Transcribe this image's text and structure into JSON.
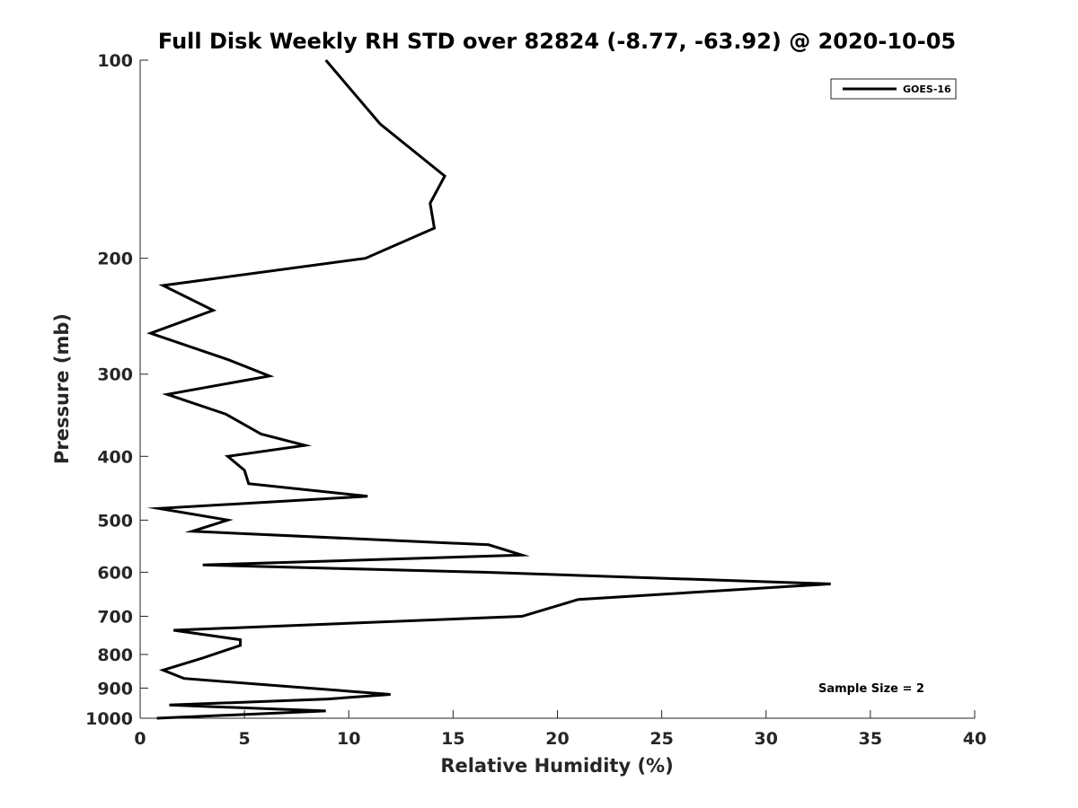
{
  "chart_data": {
    "type": "line",
    "title": "Full Disk Weekly RH STD over 82824 (-8.77, -63.92) @ 2020-10-05",
    "xlabel": "Relative Humidity (%)",
    "ylabel": "Pressure (mb)",
    "xlim": [
      0,
      40
    ],
    "ylim": [
      100,
      1000
    ],
    "y_scale": "log",
    "y_reversed": true,
    "x_ticks": [
      0,
      5,
      10,
      15,
      20,
      25,
      30,
      35,
      40
    ],
    "y_ticks": [
      100,
      200,
      300,
      400,
      500,
      600,
      700,
      800,
      900,
      1000
    ],
    "grid": false,
    "legend_position": "top-right",
    "series": [
      {
        "name": "GOES-16",
        "color": "#000000",
        "points": [
          {
            "x": 8.9,
            "y": 100
          },
          {
            "x": 11.5,
            "y": 125
          },
          {
            "x": 14.6,
            "y": 150
          },
          {
            "x": 13.9,
            "y": 165
          },
          {
            "x": 14.1,
            "y": 180
          },
          {
            "x": 10.8,
            "y": 200
          },
          {
            "x": 1.1,
            "y": 220
          },
          {
            "x": 3.5,
            "y": 240
          },
          {
            "x": 0.5,
            "y": 260
          },
          {
            "x": 4.2,
            "y": 285
          },
          {
            "x": 6.2,
            "y": 302
          },
          {
            "x": 1.3,
            "y": 322
          },
          {
            "x": 4.1,
            "y": 345
          },
          {
            "x": 5.8,
            "y": 370
          },
          {
            "x": 7.9,
            "y": 385
          },
          {
            "x": 4.2,
            "y": 400
          },
          {
            "x": 5.0,
            "y": 420
          },
          {
            "x": 5.2,
            "y": 440
          },
          {
            "x": 10.9,
            "y": 460
          },
          {
            "x": 0.9,
            "y": 480
          },
          {
            "x": 4.2,
            "y": 500
          },
          {
            "x": 2.5,
            "y": 520
          },
          {
            "x": 16.7,
            "y": 545
          },
          {
            "x": 18.3,
            "y": 565
          },
          {
            "x": 3.0,
            "y": 585
          },
          {
            "x": 16.5,
            "y": 600
          },
          {
            "x": 33.1,
            "y": 625
          },
          {
            "x": 21.0,
            "y": 660
          },
          {
            "x": 18.3,
            "y": 700
          },
          {
            "x": 1.6,
            "y": 735
          },
          {
            "x": 4.8,
            "y": 760
          },
          {
            "x": 4.8,
            "y": 775
          },
          {
            "x": 3.0,
            "y": 810
          },
          {
            "x": 1.1,
            "y": 845
          },
          {
            "x": 2.1,
            "y": 870
          },
          {
            "x": 12.0,
            "y": 920
          },
          {
            "x": 9.0,
            "y": 935
          },
          {
            "x": 1.4,
            "y": 955
          },
          {
            "x": 8.9,
            "y": 975
          },
          {
            "x": 0.8,
            "y": 1000
          }
        ]
      }
    ],
    "annotations": [
      {
        "text": "Sample Size = 2"
      }
    ]
  }
}
